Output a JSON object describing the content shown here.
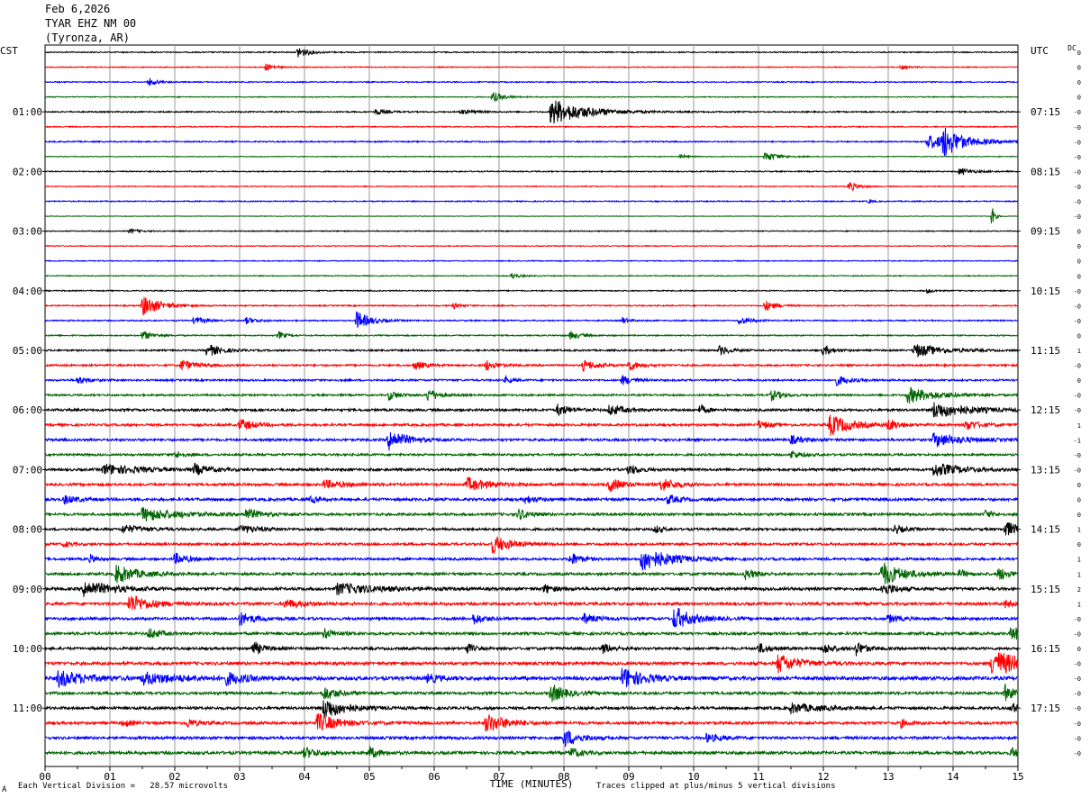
{
  "header": {
    "date": "Feb 6,2026",
    "station": "TYAR EHZ NM 00",
    "location": "(Tyronza, AR)"
  },
  "footer": {
    "division": "Each Vertical Division =   28.57 microvolts",
    "clipped": "Traces clipped at plus/minus 5 vertical divisions",
    "corner_mark": "A"
  },
  "chart_data": {
    "type": "line",
    "title": "",
    "xlabel": "TIME (MINUTES)",
    "ylabel_left": "CST",
    "ylabel_right": "UTC",
    "dc_label": "DC",
    "xlim": [
      0,
      15
    ],
    "x_ticks": [
      "00",
      "01",
      "02",
      "03",
      "04",
      "05",
      "06",
      "07",
      "08",
      "09",
      "10",
      "11",
      "12",
      "13",
      "14",
      "15"
    ],
    "trace_colors": [
      "#000000",
      "#ff0000",
      "#0000ff",
      "#006400"
    ],
    "trace_count": 48,
    "trace_interval_minutes": 15,
    "left_hour_labels": [
      {
        "trace": 4,
        "label": "01:00"
      },
      {
        "trace": 8,
        "label": "02:00"
      },
      {
        "trace": 12,
        "label": "03:00"
      },
      {
        "trace": 16,
        "label": "04:00"
      },
      {
        "trace": 20,
        "label": "05:00"
      },
      {
        "trace": 24,
        "label": "06:00"
      },
      {
        "trace": 28,
        "label": "07:00"
      },
      {
        "trace": 32,
        "label": "08:00"
      },
      {
        "trace": 36,
        "label": "09:00"
      },
      {
        "trace": 40,
        "label": "10:00"
      },
      {
        "trace": 44,
        "label": "11:00"
      }
    ],
    "right_hour_labels": [
      {
        "trace": 4,
        "label": "07:15"
      },
      {
        "trace": 8,
        "label": "08:15"
      },
      {
        "trace": 12,
        "label": "09:15"
      },
      {
        "trace": 16,
        "label": "10:15"
      },
      {
        "trace": 20,
        "label": "11:15"
      },
      {
        "trace": 24,
        "label": "12:15"
      },
      {
        "trace": 28,
        "label": "13:15"
      },
      {
        "trace": 32,
        "label": "14:15"
      },
      {
        "trace": 36,
        "label": "15:15"
      },
      {
        "trace": 40,
        "label": "16:15"
      },
      {
        "trace": 44,
        "label": "17:15"
      }
    ],
    "dc_offsets": [
      "0",
      "0",
      "0",
      "0",
      "-0",
      "-0",
      "-0",
      "-0",
      "-0",
      "-0",
      "-0",
      "-0",
      "0",
      "0",
      "0",
      "0",
      "-0",
      "-0",
      "-0",
      "0",
      "1",
      "-0",
      "0",
      "-0",
      "-0",
      "1",
      "-1",
      "-0",
      "-0",
      "0",
      "0",
      "0",
      "1",
      "0",
      "1",
      "1",
      "2",
      "1",
      "-0",
      "-0",
      "0",
      "-0",
      "-0",
      "-0",
      "-0",
      "-0",
      "-0",
      "-0"
    ],
    "base_noise": [
      0.6,
      0.5,
      0.6,
      0.5,
      0.7,
      0.6,
      0.7,
      0.4,
      0.6,
      0.5,
      0.6,
      0.3,
      0.5,
      0.5,
      0.5,
      0.5,
      0.6,
      0.7,
      0.7,
      0.7,
      0.9,
      1.0,
      1.0,
      1.0,
      1.3,
      1.3,
      1.3,
      1.2,
      1.4,
      1.4,
      1.5,
      1.4,
      1.3,
      1.3,
      1.3,
      1.4,
      1.6,
      1.5,
      1.5,
      1.5,
      1.4,
      1.6,
      1.9,
      1.5,
      1.5,
      1.5,
      1.5,
      1.6
    ],
    "events": [
      {
        "trace": 0,
        "minute": 3.9,
        "amp": 2.2,
        "dur": 0.15
      },
      {
        "trace": 1,
        "minute": 3.4,
        "amp": 1.4,
        "dur": 0.12
      },
      {
        "trace": 1,
        "minute": 13.2,
        "amp": 0.8,
        "dur": 0.1
      },
      {
        "trace": 2,
        "minute": 1.6,
        "amp": 1.5,
        "dur": 0.12
      },
      {
        "trace": 3,
        "minute": 6.9,
        "amp": 2.0,
        "dur": 0.15
      },
      {
        "trace": 4,
        "minute": 7.8,
        "amp": 5.0,
        "dur": 0.5
      },
      {
        "trace": 4,
        "minute": 5.1,
        "amp": 1.2,
        "dur": 0.15
      },
      {
        "trace": 4,
        "minute": 6.4,
        "amp": 0.9,
        "dur": 0.2
      },
      {
        "trace": 6,
        "minute": 13.6,
        "amp": 2.5,
        "dur": 0.6
      },
      {
        "trace": 6,
        "minute": 13.85,
        "amp": 5.0,
        "dur": 0.2
      },
      {
        "trace": 7,
        "minute": 11.1,
        "amp": 1.8,
        "dur": 0.2
      },
      {
        "trace": 7,
        "minute": 9.8,
        "amp": 0.8,
        "dur": 0.1
      },
      {
        "trace": 8,
        "minute": 14.1,
        "amp": 1.2,
        "dur": 0.2
      },
      {
        "trace": 9,
        "minute": 12.4,
        "amp": 2.0,
        "dur": 0.12
      },
      {
        "trace": 10,
        "minute": 12.7,
        "amp": 0.8,
        "dur": 0.05
      },
      {
        "trace": 11,
        "minute": 14.6,
        "amp": 4.0,
        "dur": 0.04
      },
      {
        "trace": 12,
        "minute": 1.3,
        "amp": 0.8,
        "dur": 0.15
      },
      {
        "trace": 15,
        "minute": 7.2,
        "amp": 1.2,
        "dur": 0.1
      },
      {
        "trace": 16,
        "minute": 13.6,
        "amp": 0.8,
        "dur": 0.1
      },
      {
        "trace": 17,
        "minute": 1.5,
        "amp": 4.0,
        "dur": 0.25
      },
      {
        "trace": 17,
        "minute": 11.1,
        "amp": 2.0,
        "dur": 0.15
      },
      {
        "trace": 17,
        "minute": 6.3,
        "amp": 1.0,
        "dur": 0.1
      },
      {
        "trace": 18,
        "minute": 4.8,
        "amp": 3.5,
        "dur": 0.2
      },
      {
        "trace": 18,
        "minute": 2.3,
        "amp": 1.5,
        "dur": 0.15
      },
      {
        "trace": 18,
        "minute": 3.1,
        "amp": 1.2,
        "dur": 0.15
      },
      {
        "trace": 18,
        "minute": 10.7,
        "amp": 1.5,
        "dur": 0.15
      },
      {
        "trace": 18,
        "minute": 8.9,
        "amp": 1.2,
        "dur": 0.1
      },
      {
        "trace": 19,
        "minute": 1.5,
        "amp": 1.8,
        "dur": 0.15
      },
      {
        "trace": 19,
        "minute": 3.6,
        "amp": 1.5,
        "dur": 0.1
      },
      {
        "trace": 19,
        "minute": 8.1,
        "amp": 1.5,
        "dur": 0.15
      },
      {
        "trace": 20,
        "minute": 2.5,
        "amp": 2.5,
        "dur": 0.2
      },
      {
        "trace": 20,
        "minute": 10.4,
        "amp": 1.8,
        "dur": 0.15
      },
      {
        "trace": 20,
        "minute": 12.0,
        "amp": 1.8,
        "dur": 0.15
      },
      {
        "trace": 20,
        "minute": 13.4,
        "amp": 2.5,
        "dur": 0.4
      },
      {
        "trace": 21,
        "minute": 2.1,
        "amp": 2.0,
        "dur": 0.2
      },
      {
        "trace": 21,
        "minute": 5.7,
        "amp": 1.8,
        "dur": 0.15
      },
      {
        "trace": 21,
        "minute": 6.8,
        "amp": 2.0,
        "dur": 0.15
      },
      {
        "trace": 21,
        "minute": 8.3,
        "amp": 2.0,
        "dur": 0.2
      },
      {
        "trace": 21,
        "minute": 9.0,
        "amp": 2.0,
        "dur": 0.15
      },
      {
        "trace": 22,
        "minute": 0.5,
        "amp": 1.5,
        "dur": 0.15
      },
      {
        "trace": 22,
        "minute": 7.1,
        "amp": 1.2,
        "dur": 0.1
      },
      {
        "trace": 22,
        "minute": 8.9,
        "amp": 1.8,
        "dur": 0.15
      },
      {
        "trace": 22,
        "minute": 12.2,
        "amp": 1.8,
        "dur": 0.2
      },
      {
        "trace": 23,
        "minute": 5.3,
        "amp": 1.8,
        "dur": 0.15
      },
      {
        "trace": 23,
        "minute": 5.9,
        "amp": 2.5,
        "dur": 0.15
      },
      {
        "trace": 23,
        "minute": 11.2,
        "amp": 2.0,
        "dur": 0.15
      },
      {
        "trace": 23,
        "minute": 13.3,
        "amp": 3.0,
        "dur": 0.4
      },
      {
        "trace": 24,
        "minute": 7.9,
        "amp": 2.0,
        "dur": 0.2
      },
      {
        "trace": 24,
        "minute": 8.7,
        "amp": 2.0,
        "dur": 0.2
      },
      {
        "trace": 24,
        "minute": 10.1,
        "amp": 1.8,
        "dur": 0.1
      },
      {
        "trace": 24,
        "minute": 13.7,
        "amp": 3.0,
        "dur": 0.5
      },
      {
        "trace": 25,
        "minute": 3.0,
        "amp": 2.2,
        "dur": 0.2
      },
      {
        "trace": 25,
        "minute": 11.0,
        "amp": 1.5,
        "dur": 0.15
      },
      {
        "trace": 25,
        "minute": 12.1,
        "amp": 4.0,
        "dur": 0.3
      },
      {
        "trace": 25,
        "minute": 13.0,
        "amp": 2.0,
        "dur": 0.15
      },
      {
        "trace": 25,
        "minute": 14.2,
        "amp": 1.8,
        "dur": 0.2
      },
      {
        "trace": 26,
        "minute": 5.3,
        "amp": 4.0,
        "dur": 0.25
      },
      {
        "trace": 26,
        "minute": 13.7,
        "amp": 2.5,
        "dur": 0.4
      },
      {
        "trace": 26,
        "minute": 11.5,
        "amp": 1.5,
        "dur": 0.2
      },
      {
        "trace": 27,
        "minute": 2.0,
        "amp": 1.2,
        "dur": 0.15
      },
      {
        "trace": 27,
        "minute": 11.5,
        "amp": 1.5,
        "dur": 0.15
      },
      {
        "trace": 28,
        "minute": 0.9,
        "amp": 2.0,
        "dur": 0.5
      },
      {
        "trace": 28,
        "minute": 2.3,
        "amp": 2.0,
        "dur": 0.2
      },
      {
        "trace": 28,
        "minute": 9.0,
        "amp": 2.0,
        "dur": 0.15
      },
      {
        "trace": 28,
        "minute": 13.7,
        "amp": 2.5,
        "dur": 0.4
      },
      {
        "trace": 29,
        "minute": 6.5,
        "amp": 2.5,
        "dur": 0.3
      },
      {
        "trace": 29,
        "minute": 8.7,
        "amp": 2.5,
        "dur": 0.2
      },
      {
        "trace": 29,
        "minute": 9.5,
        "amp": 2.5,
        "dur": 0.2
      },
      {
        "trace": 29,
        "minute": 4.3,
        "amp": 1.5,
        "dur": 0.3
      },
      {
        "trace": 30,
        "minute": 0.3,
        "amp": 1.5,
        "dur": 0.2
      },
      {
        "trace": 30,
        "minute": 7.4,
        "amp": 1.5,
        "dur": 0.15
      },
      {
        "trace": 30,
        "minute": 9.6,
        "amp": 1.8,
        "dur": 0.15
      },
      {
        "trace": 30,
        "minute": 4.1,
        "amp": 1.2,
        "dur": 0.1
      },
      {
        "trace": 31,
        "minute": 1.5,
        "amp": 2.5,
        "dur": 0.5
      },
      {
        "trace": 31,
        "minute": 3.1,
        "amp": 2.0,
        "dur": 0.2
      },
      {
        "trace": 31,
        "minute": 7.3,
        "amp": 2.0,
        "dur": 0.15
      },
      {
        "trace": 31,
        "minute": 14.5,
        "amp": 1.5,
        "dur": 0.1
      },
      {
        "trace": 32,
        "minute": 1.2,
        "amp": 1.5,
        "dur": 0.3
      },
      {
        "trace": 32,
        "minute": 3.0,
        "amp": 1.5,
        "dur": 0.3
      },
      {
        "trace": 32,
        "minute": 9.4,
        "amp": 1.5,
        "dur": 0.1
      },
      {
        "trace": 32,
        "minute": 13.1,
        "amp": 1.5,
        "dur": 0.15
      },
      {
        "trace": 32,
        "minute": 14.8,
        "amp": 3.0,
        "dur": 0.2
      },
      {
        "trace": 33,
        "minute": 6.9,
        "amp": 3.5,
        "dur": 0.25
      },
      {
        "trace": 33,
        "minute": 0.3,
        "amp": 1.0,
        "dur": 0.1
      },
      {
        "trace": 34,
        "minute": 2.0,
        "amp": 2.0,
        "dur": 0.2
      },
      {
        "trace": 34,
        "minute": 8.1,
        "amp": 2.5,
        "dur": 0.15
      },
      {
        "trace": 34,
        "minute": 9.2,
        "amp": 4.5,
        "dur": 0.4
      },
      {
        "trace": 34,
        "minute": 0.7,
        "amp": 1.5,
        "dur": 0.1
      },
      {
        "trace": 35,
        "minute": 1.1,
        "amp": 3.5,
        "dur": 0.3
      },
      {
        "trace": 35,
        "minute": 10.8,
        "amp": 2.0,
        "dur": 0.15
      },
      {
        "trace": 35,
        "minute": 12.9,
        "amp": 4.5,
        "dur": 0.3
      },
      {
        "trace": 35,
        "minute": 14.1,
        "amp": 1.5,
        "dur": 0.1
      },
      {
        "trace": 35,
        "minute": 14.7,
        "amp": 2.5,
        "dur": 0.15
      },
      {
        "trace": 36,
        "minute": 0.6,
        "amp": 3.0,
        "dur": 0.4
      },
      {
        "trace": 36,
        "minute": 4.5,
        "amp": 2.0,
        "dur": 0.6
      },
      {
        "trace": 36,
        "minute": 7.7,
        "amp": 1.5,
        "dur": 0.15
      },
      {
        "trace": 36,
        "minute": 12.9,
        "amp": 2.5,
        "dur": 0.2
      },
      {
        "trace": 37,
        "minute": 1.3,
        "amp": 3.5,
        "dur": 0.3
      },
      {
        "trace": 37,
        "minute": 3.7,
        "amp": 1.5,
        "dur": 0.3
      },
      {
        "trace": 37,
        "minute": 14.8,
        "amp": 1.5,
        "dur": 0.1
      },
      {
        "trace": 38,
        "minute": 3.0,
        "amp": 2.5,
        "dur": 0.2
      },
      {
        "trace": 38,
        "minute": 6.6,
        "amp": 2.0,
        "dur": 0.15
      },
      {
        "trace": 38,
        "minute": 8.3,
        "amp": 1.8,
        "dur": 0.2
      },
      {
        "trace": 38,
        "minute": 9.7,
        "amp": 4.5,
        "dur": 0.25
      },
      {
        "trace": 38,
        "minute": 13.0,
        "amp": 1.5,
        "dur": 0.15
      },
      {
        "trace": 39,
        "minute": 1.6,
        "amp": 2.0,
        "dur": 0.15
      },
      {
        "trace": 39,
        "minute": 4.3,
        "amp": 1.8,
        "dur": 0.15
      },
      {
        "trace": 39,
        "minute": 14.9,
        "amp": 3.0,
        "dur": 0.15
      },
      {
        "trace": 40,
        "minute": 3.2,
        "amp": 2.5,
        "dur": 0.15
      },
      {
        "trace": 40,
        "minute": 6.5,
        "amp": 2.0,
        "dur": 0.1
      },
      {
        "trace": 40,
        "minute": 8.6,
        "amp": 1.8,
        "dur": 0.15
      },
      {
        "trace": 40,
        "minute": 11.0,
        "amp": 1.8,
        "dur": 0.15
      },
      {
        "trace": 40,
        "minute": 12.0,
        "amp": 2.0,
        "dur": 0.15
      },
      {
        "trace": 40,
        "minute": 12.5,
        "amp": 2.5,
        "dur": 0.15
      },
      {
        "trace": 41,
        "minute": 11.3,
        "amp": 3.5,
        "dur": 0.3
      },
      {
        "trace": 41,
        "minute": 14.6,
        "amp": 5.0,
        "dur": 0.5
      },
      {
        "trace": 42,
        "minute": 0.2,
        "amp": 3.0,
        "dur": 0.4
      },
      {
        "trace": 42,
        "minute": 1.5,
        "amp": 2.0,
        "dur": 0.6
      },
      {
        "trace": 42,
        "minute": 2.8,
        "amp": 2.0,
        "dur": 0.3
      },
      {
        "trace": 42,
        "minute": 8.9,
        "amp": 4.0,
        "dur": 0.3
      },
      {
        "trace": 42,
        "minute": 5.9,
        "amp": 1.5,
        "dur": 0.2
      },
      {
        "trace": 43,
        "minute": 7.8,
        "amp": 3.5,
        "dur": 0.2
      },
      {
        "trace": 43,
        "minute": 4.3,
        "amp": 2.5,
        "dur": 0.2
      },
      {
        "trace": 43,
        "minute": 14.8,
        "amp": 3.0,
        "dur": 0.15
      },
      {
        "trace": 44,
        "minute": 4.3,
        "amp": 4.0,
        "dur": 0.3
      },
      {
        "trace": 44,
        "minute": 11.5,
        "amp": 1.8,
        "dur": 0.4
      },
      {
        "trace": 44,
        "minute": 14.9,
        "amp": 2.0,
        "dur": 0.1
      },
      {
        "trace": 45,
        "minute": 4.2,
        "amp": 3.5,
        "dur": 0.3
      },
      {
        "trace": 45,
        "minute": 6.8,
        "amp": 3.5,
        "dur": 0.3
      },
      {
        "trace": 45,
        "minute": 2.2,
        "amp": 1.5,
        "dur": 0.15
      },
      {
        "trace": 45,
        "minute": 1.2,
        "amp": 1.5,
        "dur": 0.1
      },
      {
        "trace": 45,
        "minute": 13.2,
        "amp": 1.5,
        "dur": 0.1
      },
      {
        "trace": 46,
        "minute": 8.0,
        "amp": 3.5,
        "dur": 0.2
      },
      {
        "trace": 46,
        "minute": 10.2,
        "amp": 1.5,
        "dur": 0.2
      },
      {
        "trace": 47,
        "minute": 4.0,
        "amp": 2.0,
        "dur": 0.2
      },
      {
        "trace": 47,
        "minute": 5.0,
        "amp": 2.0,
        "dur": 0.15
      },
      {
        "trace": 47,
        "minute": 8.1,
        "amp": 2.0,
        "dur": 0.15
      },
      {
        "trace": 47,
        "minute": 14.9,
        "amp": 2.0,
        "dur": 0.1
      }
    ]
  }
}
